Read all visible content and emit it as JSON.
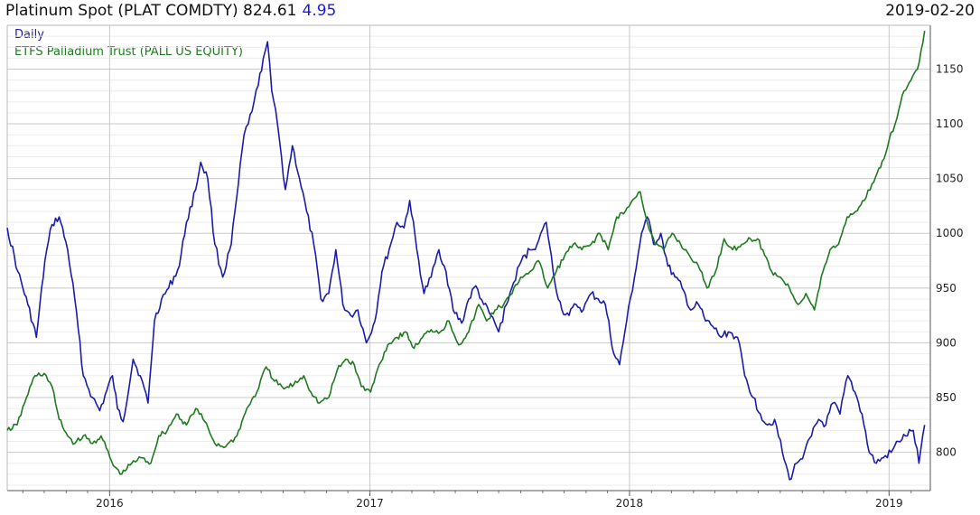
{
  "header": {
    "title": "Platinum Spot (PLAT COMDTY) 824.61",
    "change": "4.95",
    "date": "2019-02-20"
  },
  "chart_data": {
    "type": "line",
    "grid": true,
    "legend_position": "top-left",
    "x_ticks": [
      "2016",
      "2017",
      "2018",
      "2019"
    ],
    "y_ticks": [
      800,
      850,
      900,
      950,
      1000,
      1050,
      1100,
      1150
    ],
    "ylim": [
      765,
      1190
    ],
    "xlim": [
      "2015-08-10",
      "2019-02-28"
    ],
    "series": [
      {
        "name": "Daily",
        "color": "#1c1caa",
        "points": [
          [
            "2015-08-10",
            1005
          ],
          [
            "2015-08-25",
            965
          ],
          [
            "2015-09-08",
            935
          ],
          [
            "2015-09-20",
            905
          ],
          [
            "2015-10-02",
            975
          ],
          [
            "2015-10-12",
            1008
          ],
          [
            "2015-10-22",
            1015
          ],
          [
            "2015-11-03",
            985
          ],
          [
            "2015-11-13",
            940
          ],
          [
            "2015-11-25",
            870
          ],
          [
            "2015-12-08",
            850
          ],
          [
            "2015-12-18",
            838
          ],
          [
            "2016-01-05",
            870
          ],
          [
            "2016-01-12",
            840
          ],
          [
            "2016-01-20",
            828
          ],
          [
            "2016-02-03",
            885
          ],
          [
            "2016-02-13",
            870
          ],
          [
            "2016-02-24",
            845
          ],
          [
            "2016-03-04",
            920
          ],
          [
            "2016-03-14",
            940
          ],
          [
            "2016-03-24",
            950
          ],
          [
            "2016-04-08",
            970
          ],
          [
            "2016-04-18",
            1010
          ],
          [
            "2016-05-01",
            1040
          ],
          [
            "2016-05-08",
            1065
          ],
          [
            "2016-05-18",
            1050
          ],
          [
            "2016-05-28",
            990
          ],
          [
            "2016-06-08",
            960
          ],
          [
            "2016-06-20",
            990
          ],
          [
            "2016-06-30",
            1045
          ],
          [
            "2016-07-08",
            1090
          ],
          [
            "2016-07-14",
            1100
          ],
          [
            "2016-07-22",
            1120
          ],
          [
            "2016-07-28",
            1135
          ],
          [
            "2016-08-04",
            1160
          ],
          [
            "2016-08-10",
            1175
          ],
          [
            "2016-08-16",
            1130
          ],
          [
            "2016-08-24",
            1100
          ],
          [
            "2016-09-04",
            1040
          ],
          [
            "2016-09-14",
            1080
          ],
          [
            "2016-09-24",
            1050
          ],
          [
            "2016-10-04",
            1020
          ],
          [
            "2016-10-14",
            990
          ],
          [
            "2016-10-24",
            940
          ],
          [
            "2016-11-04",
            945
          ],
          [
            "2016-11-14",
            985
          ],
          [
            "2016-11-24",
            935
          ],
          [
            "2016-12-05",
            925
          ],
          [
            "2016-12-15",
            930
          ],
          [
            "2016-12-27",
            900
          ],
          [
            "2017-01-08",
            920
          ],
          [
            "2017-01-18",
            965
          ],
          [
            "2017-01-28",
            985
          ],
          [
            "2017-02-08",
            1010
          ],
          [
            "2017-02-18",
            1005
          ],
          [
            "2017-02-26",
            1030
          ],
          [
            "2017-03-08",
            985
          ],
          [
            "2017-03-18",
            945
          ],
          [
            "2017-03-28",
            960
          ],
          [
            "2017-04-08",
            985
          ],
          [
            "2017-04-18",
            965
          ],
          [
            "2017-04-28",
            930
          ],
          [
            "2017-05-10",
            918
          ],
          [
            "2017-05-20",
            940
          ],
          [
            "2017-05-30",
            952
          ],
          [
            "2017-06-10",
            935
          ],
          [
            "2017-06-20",
            925
          ],
          [
            "2017-07-01",
            910
          ],
          [
            "2017-07-12",
            935
          ],
          [
            "2017-07-22",
            955
          ],
          [
            "2017-08-02",
            975
          ],
          [
            "2017-08-14",
            985
          ],
          [
            "2017-08-24",
            990
          ],
          [
            "2017-09-06",
            1010
          ],
          [
            "2017-09-18",
            955
          ],
          [
            "2017-09-28",
            930
          ],
          [
            "2017-10-08",
            925
          ],
          [
            "2017-10-18",
            935
          ],
          [
            "2017-10-28",
            930
          ],
          [
            "2017-11-08",
            945
          ],
          [
            "2017-11-18",
            940
          ],
          [
            "2017-11-28",
            935
          ],
          [
            "2017-12-10",
            890
          ],
          [
            "2017-12-18",
            880
          ],
          [
            "2017-12-28",
            920
          ],
          [
            "2018-01-08",
            960
          ],
          [
            "2018-01-18",
            1000
          ],
          [
            "2018-01-26",
            1015
          ],
          [
            "2018-02-04",
            990
          ],
          [
            "2018-02-14",
            1000
          ],
          [
            "2018-02-24",
            970
          ],
          [
            "2018-03-06",
            960
          ],
          [
            "2018-03-16",
            950
          ],
          [
            "2018-03-28",
            930
          ],
          [
            "2018-04-08",
            935
          ],
          [
            "2018-04-18",
            920
          ],
          [
            "2018-04-28",
            915
          ],
          [
            "2018-05-10",
            905
          ],
          [
            "2018-05-20",
            910
          ],
          [
            "2018-06-02",
            905
          ],
          [
            "2018-06-12",
            870
          ],
          [
            "2018-06-24",
            850
          ],
          [
            "2018-07-04",
            835
          ],
          [
            "2018-07-14",
            825
          ],
          [
            "2018-07-24",
            830
          ],
          [
            "2018-08-04",
            800
          ],
          [
            "2018-08-14",
            775
          ],
          [
            "2018-08-24",
            790
          ],
          [
            "2018-09-04",
            800
          ],
          [
            "2018-09-14",
            815
          ],
          [
            "2018-09-24",
            830
          ],
          [
            "2018-10-04",
            825
          ],
          [
            "2018-10-14",
            845
          ],
          [
            "2018-10-24",
            835
          ],
          [
            "2018-11-04",
            870
          ],
          [
            "2018-11-14",
            855
          ],
          [
            "2018-11-24",
            835
          ],
          [
            "2018-12-04",
            800
          ],
          [
            "2018-12-14",
            790
          ],
          [
            "2018-12-24",
            795
          ],
          [
            "2019-01-04",
            800
          ],
          [
            "2019-01-14",
            810
          ],
          [
            "2019-01-24",
            815
          ],
          [
            "2019-02-04",
            820
          ],
          [
            "2019-02-12",
            790
          ],
          [
            "2019-02-20",
            825
          ]
        ]
      },
      {
        "name": "ETFS Palladium Trust (PALL US EQUITY)",
        "color": "#1f7a1f",
        "points": [
          [
            "2015-08-10",
            820
          ],
          [
            "2015-08-24",
            825
          ],
          [
            "2015-09-06",
            850
          ],
          [
            "2015-09-18",
            870
          ],
          [
            "2015-10-01",
            872
          ],
          [
            "2015-10-12",
            860
          ],
          [
            "2015-10-22",
            830
          ],
          [
            "2015-11-03",
            815
          ],
          [
            "2015-11-13",
            808
          ],
          [
            "2015-11-25",
            815
          ],
          [
            "2015-12-08",
            808
          ],
          [
            "2015-12-20",
            815
          ],
          [
            "2016-01-06",
            788
          ],
          [
            "2016-01-18",
            780
          ],
          [
            "2016-02-01",
            790
          ],
          [
            "2016-02-14",
            795
          ],
          [
            "2016-02-28",
            790
          ],
          [
            "2016-03-10",
            815
          ],
          [
            "2016-03-22",
            820
          ],
          [
            "2016-04-04",
            835
          ],
          [
            "2016-04-18",
            825
          ],
          [
            "2016-05-01",
            840
          ],
          [
            "2016-05-14",
            828
          ],
          [
            "2016-05-28",
            808
          ],
          [
            "2016-06-12",
            805
          ],
          [
            "2016-06-28",
            815
          ],
          [
            "2016-07-12",
            840
          ],
          [
            "2016-07-26",
            855
          ],
          [
            "2016-08-08",
            878
          ],
          [
            "2016-08-20",
            865
          ],
          [
            "2016-09-02",
            858
          ],
          [
            "2016-09-16",
            862
          ],
          [
            "2016-09-30",
            870
          ],
          [
            "2016-10-10",
            855
          ],
          [
            "2016-10-22",
            845
          ],
          [
            "2016-11-04",
            850
          ],
          [
            "2016-11-16",
            875
          ],
          [
            "2016-11-28",
            885
          ],
          [
            "2016-12-10",
            880
          ],
          [
            "2016-12-20",
            860
          ],
          [
            "2017-01-02",
            855
          ],
          [
            "2017-01-14",
            880
          ],
          [
            "2017-01-26",
            898
          ],
          [
            "2017-02-08",
            905
          ],
          [
            "2017-02-20",
            910
          ],
          [
            "2017-03-04",
            895
          ],
          [
            "2017-03-16",
            905
          ],
          [
            "2017-03-28",
            912
          ],
          [
            "2017-04-10",
            910
          ],
          [
            "2017-04-22",
            920
          ],
          [
            "2017-05-06",
            898
          ],
          [
            "2017-05-20",
            910
          ],
          [
            "2017-06-03",
            935
          ],
          [
            "2017-06-14",
            920
          ],
          [
            "2017-06-26",
            930
          ],
          [
            "2017-07-08",
            935
          ],
          [
            "2017-07-20",
            945
          ],
          [
            "2017-08-01",
            960
          ],
          [
            "2017-08-14",
            965
          ],
          [
            "2017-08-26",
            975
          ],
          [
            "2017-09-08",
            950
          ],
          [
            "2017-09-20",
            965
          ],
          [
            "2017-10-02",
            980
          ],
          [
            "2017-10-14",
            990
          ],
          [
            "2017-10-26",
            985
          ],
          [
            "2017-11-08",
            990
          ],
          [
            "2017-11-20",
            1000
          ],
          [
            "2017-12-02",
            985
          ],
          [
            "2017-12-14",
            1015
          ],
          [
            "2017-12-26",
            1020
          ],
          [
            "2018-01-08",
            1032
          ],
          [
            "2018-01-16",
            1038
          ],
          [
            "2018-01-26",
            1010
          ],
          [
            "2018-02-06",
            990
          ],
          [
            "2018-02-18",
            985
          ],
          [
            "2018-03-02",
            1000
          ],
          [
            "2018-03-14",
            990
          ],
          [
            "2018-03-26",
            980
          ],
          [
            "2018-04-08",
            970
          ],
          [
            "2018-04-20",
            950
          ],
          [
            "2018-05-02",
            965
          ],
          [
            "2018-05-14",
            995
          ],
          [
            "2018-05-26",
            985
          ],
          [
            "2018-06-08",
            990
          ],
          [
            "2018-06-20",
            995
          ],
          [
            "2018-06-30",
            995
          ],
          [
            "2018-07-10",
            980
          ],
          [
            "2018-07-20",
            965
          ],
          [
            "2018-08-01",
            960
          ],
          [
            "2018-08-14",
            950
          ],
          [
            "2018-08-26",
            935
          ],
          [
            "2018-09-06",
            945
          ],
          [
            "2018-09-18",
            930
          ],
          [
            "2018-09-30",
            965
          ],
          [
            "2018-10-10",
            985
          ],
          [
            "2018-10-22",
            990
          ],
          [
            "2018-11-03",
            1015
          ],
          [
            "2018-11-15",
            1020
          ],
          [
            "2018-11-27",
            1030
          ],
          [
            "2018-12-08",
            1045
          ],
          [
            "2018-12-20",
            1060
          ],
          [
            "2019-01-01",
            1085
          ],
          [
            "2019-01-12",
            1105
          ],
          [
            "2019-01-22",
            1130
          ],
          [
            "2019-02-01",
            1140
          ],
          [
            "2019-02-10",
            1150
          ],
          [
            "2019-02-20",
            1185
          ]
        ]
      }
    ]
  }
}
